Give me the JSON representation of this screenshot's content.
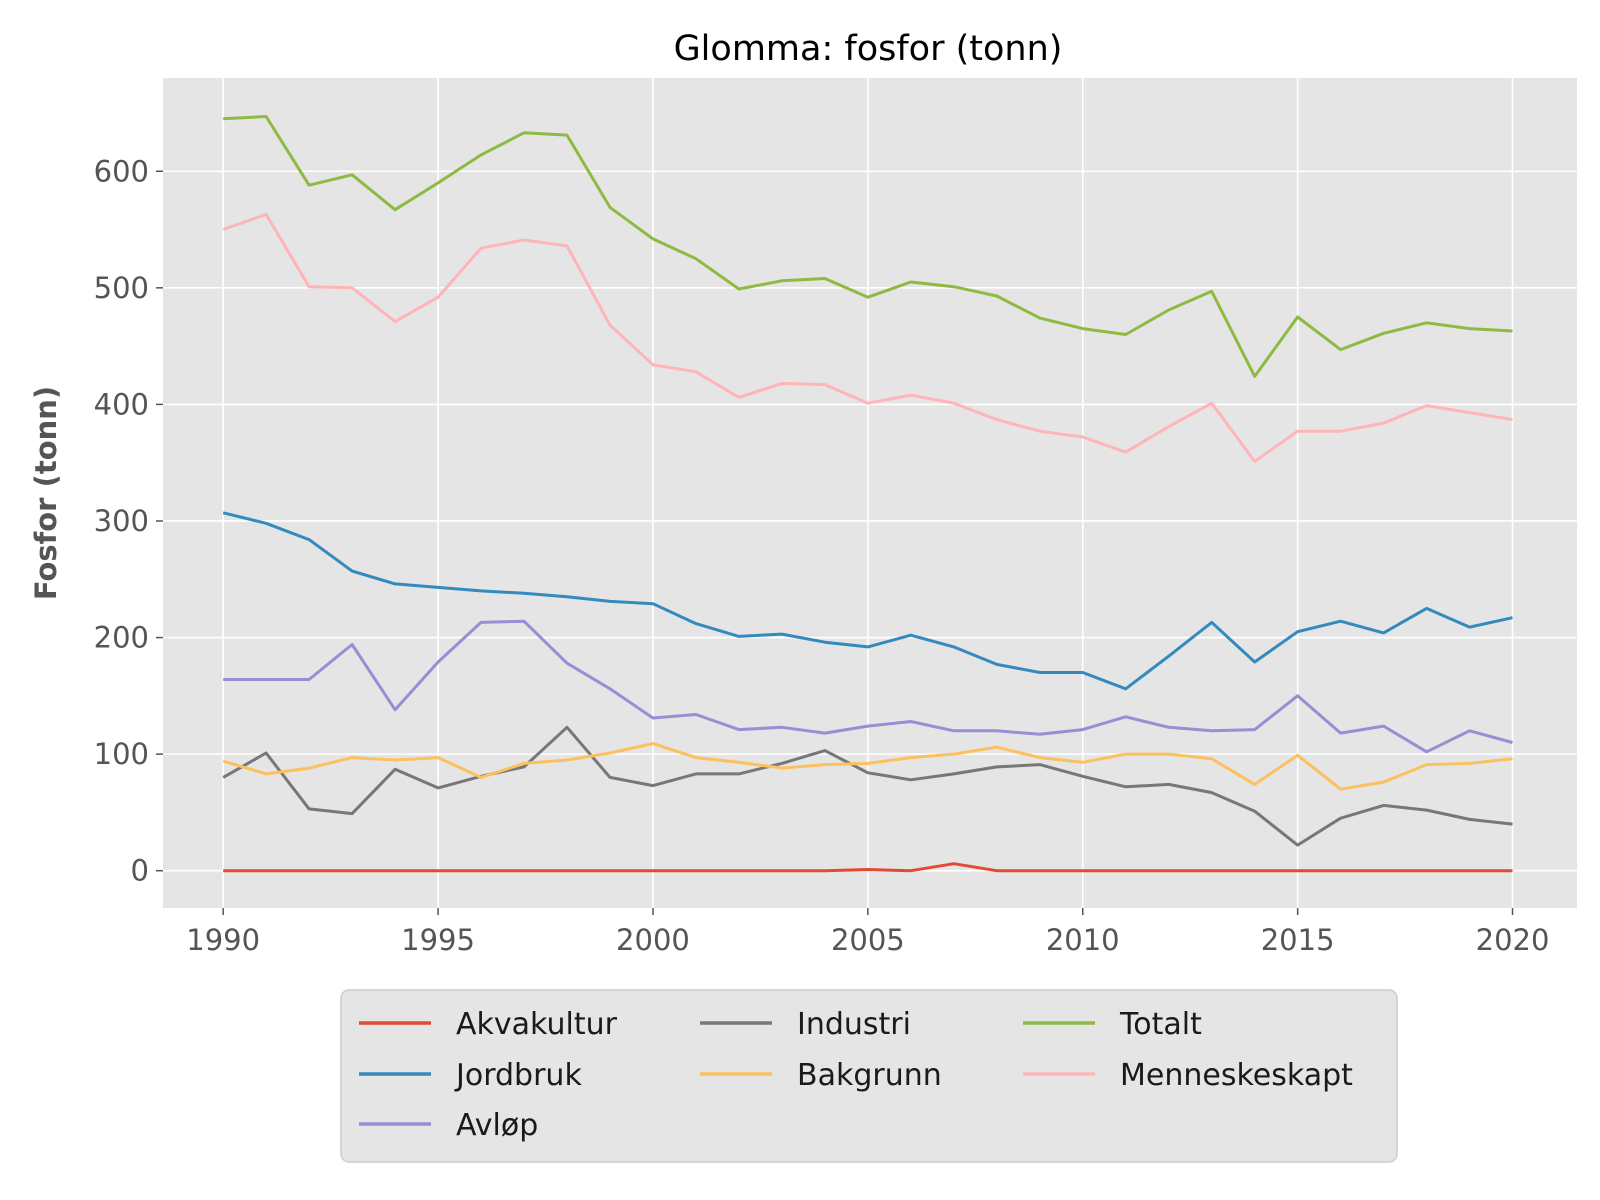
{
  "chart_data": {
    "type": "line",
    "title": "Glomma: fosfor (tonn)",
    "xlabel": "",
    "ylabel": "Fosfor (tonn)",
    "xlim": [
      1988.6,
      2021.5
    ],
    "ylim": [
      -32,
      680
    ],
    "xticks": [
      1990,
      1995,
      2000,
      2005,
      2010,
      2015,
      2020
    ],
    "yticks": [
      0,
      100,
      200,
      300,
      400,
      500,
      600
    ],
    "grid": true,
    "legend_position": "bottom-center",
    "x": [
      1990,
      1991,
      1992,
      1993,
      1994,
      1995,
      1996,
      1997,
      1998,
      1999,
      2000,
      2001,
      2002,
      2003,
      2004,
      2005,
      2006,
      2007,
      2008,
      2009,
      2010,
      2011,
      2012,
      2013,
      2014,
      2015,
      2016,
      2017,
      2018,
      2019,
      2020
    ],
    "series": [
      {
        "name": "Akvakultur",
        "color": "#E24A33",
        "values": [
          0,
          0,
          0,
          0,
          0,
          0,
          0,
          0,
          0,
          0,
          0,
          0,
          0,
          0,
          0,
          1,
          0,
          6,
          0,
          0,
          0,
          0,
          0,
          0,
          0,
          0,
          0,
          0,
          0,
          0,
          0
        ]
      },
      {
        "name": "Jordbruk",
        "color": "#348ABD",
        "values": [
          307,
          298,
          284,
          257,
          246,
          243,
          240,
          238,
          235,
          231,
          229,
          212,
          201,
          203,
          196,
          192,
          202,
          192,
          177,
          170,
          170,
          156,
          184,
          213,
          179,
          205,
          214,
          204,
          225,
          209,
          217
        ]
      },
      {
        "name": "Avløp",
        "color": "#988ED5",
        "values": [
          164,
          164,
          164,
          194,
          138,
          179,
          213,
          214,
          178,
          156,
          131,
          134,
          121,
          123,
          118,
          124,
          128,
          120,
          120,
          117,
          121,
          132,
          123,
          120,
          121,
          150,
          118,
          124,
          102,
          120,
          110
        ]
      },
      {
        "name": "Industri",
        "color": "#777777",
        "values": [
          80,
          101,
          53,
          49,
          87,
          71,
          81,
          89,
          123,
          80,
          73,
          83,
          83,
          92,
          103,
          84,
          78,
          83,
          89,
          91,
          81,
          72,
          74,
          67,
          51,
          22,
          45,
          56,
          52,
          44,
          40
        ]
      },
      {
        "name": "Bakgrunn",
        "color": "#FBC15E",
        "values": [
          94,
          83,
          88,
          97,
          95,
          97,
          80,
          92,
          95,
          101,
          109,
          97,
          93,
          88,
          91,
          92,
          97,
          100,
          106,
          97,
          93,
          100,
          100,
          96,
          74,
          99,
          70,
          76,
          91,
          92,
          96
        ]
      },
      {
        "name": "Totalt",
        "color": "#8EBA42",
        "values": [
          645,
          647,
          588,
          597,
          567,
          590,
          614,
          633,
          631,
          569,
          542,
          525,
          499,
          506,
          508,
          492,
          505,
          501,
          493,
          474,
          465,
          460,
          481,
          497,
          424,
          475,
          447,
          461,
          470,
          465,
          463
        ]
      },
      {
        "name": "Menneskeskapt",
        "color": "#FFB5B8",
        "values": [
          550,
          563,
          501,
          500,
          471,
          492,
          534,
          541,
          536,
          468,
          434,
          428,
          406,
          418,
          417,
          401,
          408,
          401,
          387,
          377,
          372,
          359,
          381,
          401,
          351,
          377,
          377,
          384,
          399,
          393,
          387
        ]
      }
    ]
  }
}
